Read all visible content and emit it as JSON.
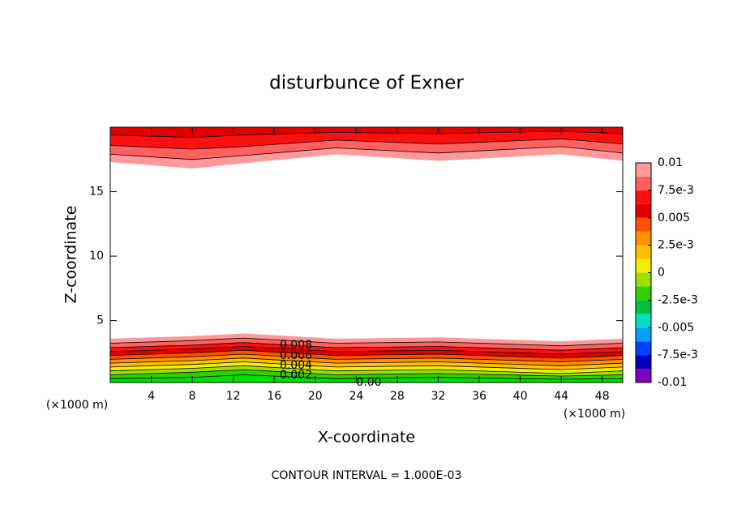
{
  "chart_data": {
    "type": "contour",
    "title": "disturbunce of Exner",
    "xlabel": "X-coordinate",
    "ylabel": "Z-coordinate",
    "xunit": "(×1000 m)",
    "footer": "CONTOUR INTERVAL = 1.000E-03",
    "xlim": [
      0,
      50
    ],
    "ylim": [
      0.2,
      20
    ],
    "xticks": [
      4,
      8,
      12,
      16,
      20,
      24,
      28,
      32,
      36,
      40,
      44,
      48
    ],
    "yticks": [
      5,
      10,
      15
    ],
    "x": [
      0,
      8,
      13,
      22,
      32,
      44,
      50
    ],
    "bottom_regions": [
      {
        "color": "#ff9999",
        "values": [
          3.6,
          3.8,
          4.0,
          3.6,
          3.7,
          3.4,
          3.6
        ]
      },
      {
        "color": "#ff6060",
        "values": [
          3.25,
          3.45,
          3.65,
          3.25,
          3.35,
          3.05,
          3.25
        ]
      },
      {
        "color": "#ff1010",
        "values": [
          2.9,
          3.1,
          3.3,
          2.9,
          3.0,
          2.7,
          2.9
        ]
      },
      {
        "color": "#e00000",
        "values": [
          2.6,
          2.8,
          3.0,
          2.6,
          2.7,
          2.4,
          2.6
        ]
      },
      {
        "color": "#ff5000",
        "values": [
          2.3,
          2.5,
          2.7,
          2.3,
          2.4,
          2.1,
          2.3
        ]
      },
      {
        "color": "#ff9000",
        "values": [
          2.0,
          2.2,
          2.4,
          2.0,
          2.1,
          1.8,
          2.0
        ]
      },
      {
        "color": "#ffc000",
        "values": [
          1.7,
          1.9,
          2.1,
          1.7,
          1.8,
          1.5,
          1.7
        ]
      },
      {
        "color": "#f0f000",
        "values": [
          1.4,
          1.6,
          1.8,
          1.4,
          1.5,
          1.2,
          1.4
        ]
      },
      {
        "color": "#a0e000",
        "values": [
          1.1,
          1.3,
          1.5,
          1.1,
          1.2,
          0.9,
          1.1
        ]
      },
      {
        "color": "#30d000",
        "values": [
          0.8,
          1.0,
          1.2,
          0.8,
          0.9,
          0.7,
          0.8
        ]
      },
      {
        "color": "#00e000",
        "values": [
          0.5,
          0.6,
          0.8,
          0.5,
          0.6,
          0.45,
          0.5
        ]
      }
    ],
    "top_regions": [
      {
        "color": "#ff9999",
        "values": [
          17.3,
          16.8,
          17.2,
          17.9,
          17.4,
          17.9,
          17.4
        ]
      },
      {
        "color": "#ff6060",
        "values": [
          17.9,
          17.5,
          17.8,
          18.4,
          18.0,
          18.5,
          18.0
        ]
      },
      {
        "color": "#ff1010",
        "values": [
          18.6,
          18.3,
          18.5,
          19.0,
          18.7,
          19.1,
          18.7
        ]
      },
      {
        "color": "#e00000",
        "values": [
          19.4,
          19.2,
          19.4,
          19.6,
          19.5,
          19.7,
          19.5
        ]
      }
    ],
    "contour_labels": [
      "0.008",
      "0.006",
      "0.004",
      "0.002",
      "0.00"
    ],
    "clim": [
      -0.01,
      0.01
    ],
    "colorbar_colors": [
      "#8000c0",
      "#0000c0",
      "#0040ff",
      "#00a0ff",
      "#00e0c0",
      "#00c040",
      "#30d000",
      "#a0e000",
      "#f0f000",
      "#ffc000",
      "#ff9000",
      "#ff5000",
      "#e00000",
      "#ff1010",
      "#ff6060",
      "#ff9999"
    ],
    "colorbar_ticks": [
      {
        "value": 0.01,
        "label": "0.01"
      },
      {
        "value": 0.0075,
        "label": "7.5e-3"
      },
      {
        "value": 0.005,
        "label": "0.005"
      },
      {
        "value": 0.0025,
        "label": "2.5e-3"
      },
      0,
      {
        "value": -0.0025,
        "label": "-2.5e-3"
      },
      {
        "value": -0.005,
        "label": "-0.005"
      },
      {
        "value": -0.0075,
        "label": "-7.5e-3"
      },
      {
        "value": -0.01,
        "label": "-0.01"
      }
    ]
  }
}
